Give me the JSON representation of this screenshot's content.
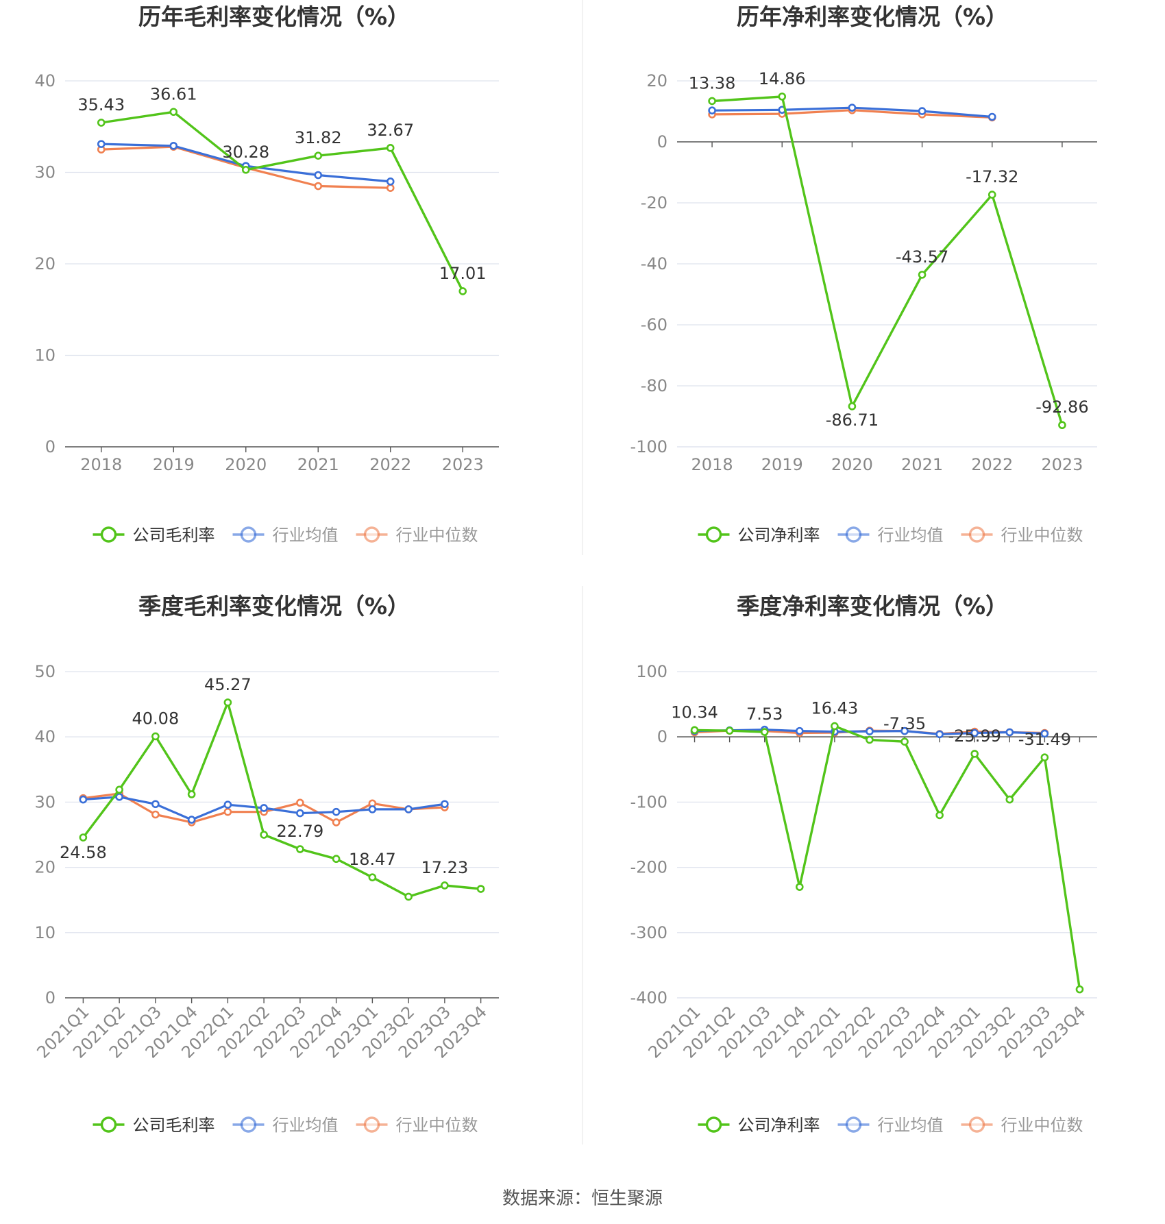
{
  "colors": {
    "company": "#52c41a",
    "average": "#3a6fd8",
    "median": "#f08050",
    "grid": "#dfe3ee",
    "axis": "#555555",
    "tick_text": "#888888",
    "title_text": "#333333",
    "label_text": "#333333",
    "divider": "#eeeeee"
  },
  "source_text": "数据来源：恒生聚源",
  "chart_data": [
    {
      "id": "annual-gross",
      "type": "line",
      "title": "历年毛利率变化情况（%）",
      "categories": [
        "2018",
        "2019",
        "2020",
        "2021",
        "2022",
        "2023"
      ],
      "ylim": [
        0,
        40
      ],
      "yticks": [
        0,
        10,
        20,
        30,
        40
      ],
      "grid": true,
      "legend_position": "bottom",
      "series": [
        {
          "name": "公司毛利率",
          "role": "company",
          "values": [
            35.43,
            36.61,
            30.28,
            31.82,
            32.67,
            17.01
          ],
          "labels": [
            "35.43",
            "36.61",
            "30.28",
            "31.82",
            "32.67",
            "17.01"
          ]
        },
        {
          "name": "行业均值",
          "role": "average",
          "values": [
            33.1,
            32.9,
            30.7,
            29.7,
            29.0,
            null
          ]
        },
        {
          "name": "行业中位数",
          "role": "median",
          "values": [
            32.5,
            32.8,
            30.5,
            28.5,
            28.3,
            null
          ]
        }
      ]
    },
    {
      "id": "annual-net",
      "type": "line",
      "title": "历年净利率变化情况（%）",
      "categories": [
        "2018",
        "2019",
        "2020",
        "2021",
        "2022",
        "2023"
      ],
      "ylim": [
        -100,
        20
      ],
      "yticks": [
        -100,
        -80,
        -60,
        -40,
        -20,
        0,
        20
      ],
      "grid": true,
      "legend_position": "bottom",
      "series": [
        {
          "name": "公司净利率",
          "role": "company",
          "values": [
            13.38,
            14.86,
            -86.71,
            -43.57,
            -17.32,
            -92.86
          ],
          "labels": [
            "13.38",
            "14.86",
            "-86.71",
            "-43.57",
            "-17.32",
            "-92.86"
          ]
        },
        {
          "name": "行业均值",
          "role": "average",
          "values": [
            10.3,
            10.5,
            11.2,
            10.1,
            8.2,
            null
          ]
        },
        {
          "name": "行业中位数",
          "role": "median",
          "values": [
            9.0,
            9.2,
            10.4,
            9.0,
            8.0,
            null
          ]
        }
      ]
    },
    {
      "id": "quarter-gross",
      "type": "line",
      "title": "季度毛利率变化情况（%）",
      "categories": [
        "2021Q1",
        "2021Q2",
        "2021Q3",
        "2021Q4",
        "2022Q1",
        "2022Q2",
        "2022Q3",
        "2022Q4",
        "2023Q1",
        "2023Q2",
        "2023Q3",
        "2023Q4"
      ],
      "ylim": [
        0,
        50
      ],
      "yticks": [
        0,
        10,
        20,
        30,
        40,
        50
      ],
      "grid": true,
      "legend_position": "bottom",
      "series": [
        {
          "name": "公司毛利率",
          "role": "company",
          "values": [
            24.58,
            31.9,
            40.08,
            31.2,
            45.27,
            25.0,
            22.79,
            21.3,
            18.47,
            15.5,
            17.23,
            16.7
          ],
          "labels": [
            "24.58",
            null,
            "40.08",
            null,
            "45.27",
            null,
            "22.79",
            null,
            "18.47",
            null,
            "17.23",
            null
          ]
        },
        {
          "name": "行业均值",
          "role": "average",
          "values": [
            30.4,
            30.8,
            29.7,
            27.3,
            29.6,
            29.1,
            28.3,
            28.5,
            28.9,
            28.9,
            29.7,
            null
          ]
        },
        {
          "name": "行业中位数",
          "role": "median",
          "values": [
            30.6,
            31.3,
            28.1,
            26.9,
            28.5,
            28.5,
            29.9,
            26.9,
            29.8,
            28.9,
            29.2,
            null
          ]
        }
      ]
    },
    {
      "id": "quarter-net",
      "type": "line",
      "title": "季度净利率变化情况（%）",
      "categories": [
        "2021Q1",
        "2021Q2",
        "2021Q3",
        "2021Q4",
        "2022Q1",
        "2022Q2",
        "2022Q3",
        "2022Q4",
        "2023Q1",
        "2023Q2",
        "2023Q3",
        "2023Q4"
      ],
      "ylim": [
        -400,
        100
      ],
      "yticks": [
        -400,
        -300,
        -200,
        -100,
        0,
        100
      ],
      "grid": true,
      "legend_position": "bottom",
      "series": [
        {
          "name": "公司净利率",
          "role": "company",
          "values": [
            10.34,
            9.5,
            7.53,
            -230.0,
            16.43,
            -4.5,
            -7.35,
            -120.0,
            -25.99,
            -96.0,
            -31.49,
            -387.0
          ],
          "labels": [
            "10.34",
            null,
            "7.53",
            null,
            "16.43",
            null,
            "-7.35",
            null,
            "-25.99",
            null,
            "-31.49",
            null
          ]
        },
        {
          "name": "行业均值",
          "role": "average",
          "values": [
            9.0,
            10.0,
            11.0,
            9.0,
            8.0,
            8.5,
            9.0,
            4.0,
            6.0,
            7.0,
            5.0,
            null
          ]
        },
        {
          "name": "行业中位数",
          "role": "median",
          "values": [
            7.0,
            9.5,
            9.0,
            6.0,
            6.5,
            9.5,
            9.0,
            4.5,
            8.0,
            7.0,
            6.0,
            null
          ]
        }
      ]
    }
  ]
}
